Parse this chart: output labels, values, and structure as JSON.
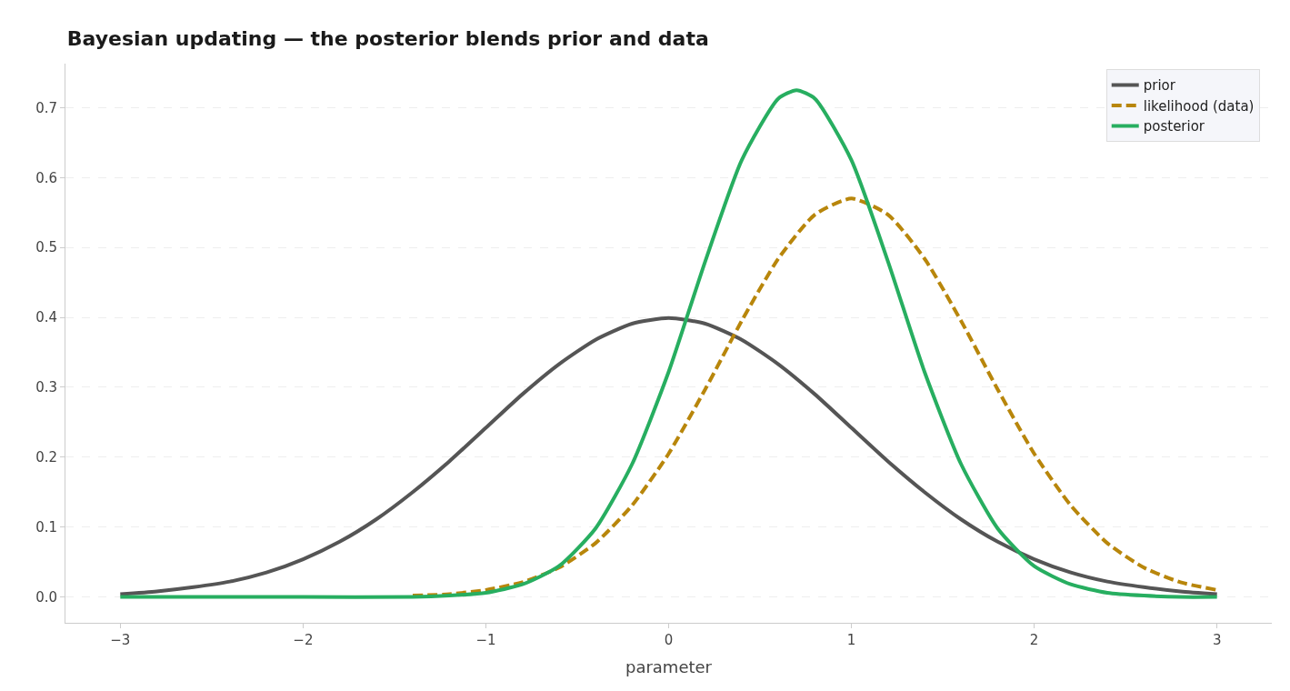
{
  "chart_data": {
    "type": "line",
    "title": "Bayesian updating — the posterior blends prior and data",
    "xlabel": "parameter",
    "x": [
      -3.0,
      -2.8,
      -2.6,
      -2.4,
      -2.2,
      -2.0,
      -1.8,
      -1.6,
      -1.4,
      -1.2,
      -1.0,
      -0.8,
      -0.6,
      -0.4,
      -0.2,
      0.0,
      0.2,
      0.4,
      0.6,
      0.8,
      1.0,
      1.2,
      1.4,
      1.6,
      1.8,
      2.0,
      2.2,
      2.4,
      2.6,
      2.8,
      3.0
    ],
    "series": [
      {
        "name": "prior",
        "color": "#555555",
        "line_style": "solid",
        "values": [
          0.004,
          0.008,
          0.014,
          0.022,
          0.035,
          0.054,
          0.079,
          0.111,
          0.15,
          0.194,
          0.242,
          0.29,
          0.333,
          0.368,
          0.391,
          0.399,
          0.391,
          0.368,
          0.333,
          0.29,
          0.242,
          0.194,
          0.15,
          0.111,
          0.079,
          0.054,
          0.035,
          0.022,
          0.014,
          0.008,
          0.004
        ]
      },
      {
        "name": "likelihood (data)",
        "color": "#b8860b",
        "line_style": "dashed",
        "values": [
          null,
          null,
          null,
          null,
          null,
          null,
          null,
          null,
          0.002,
          0.004,
          0.01,
          0.021,
          0.042,
          0.077,
          0.131,
          0.205,
          0.297,
          0.395,
          0.484,
          0.547,
          0.57,
          0.547,
          0.484,
          0.395,
          0.297,
          0.205,
          0.131,
          0.077,
          0.042,
          0.021,
          0.01
        ]
      },
      {
        "name": "posterior",
        "color": "#27ae60",
        "line_style": "solid",
        "x": [
          -3.0,
          -2.0,
          -1.4,
          -1.2,
          -1.0,
          -0.8,
          -0.6,
          -0.4,
          -0.2,
          0.0,
          0.2,
          0.4,
          0.6,
          0.7,
          0.8,
          1.0,
          1.2,
          1.4,
          1.6,
          1.8,
          2.0,
          2.2,
          2.4,
          2.6,
          2.8,
          3.0
        ],
        "values": [
          0.0,
          0.0,
          0.0,
          0.002,
          0.006,
          0.018,
          0.044,
          0.098,
          0.19,
          0.322,
          0.48,
          0.625,
          0.713,
          0.725,
          0.713,
          0.625,
          0.48,
          0.322,
          0.19,
          0.098,
          0.044,
          0.018,
          0.006,
          0.002,
          0.0,
          0.0
        ]
      }
    ],
    "xlim": [
      -3.3,
      3.3
    ],
    "ylim": [
      -0.037,
      0.763
    ],
    "xticks": [
      {
        "value": -3,
        "label": "−3"
      },
      {
        "value": -2,
        "label": "−2"
      },
      {
        "value": -1,
        "label": "−1"
      },
      0,
      1,
      2,
      3
    ],
    "yticks": [
      {
        "value": 0,
        "label": "0.0"
      },
      0.1,
      0.2,
      0.3,
      0.4,
      0.5,
      0.6,
      0.7
    ],
    "grid": "y",
    "legend": "top right",
    "marker": "none"
  }
}
